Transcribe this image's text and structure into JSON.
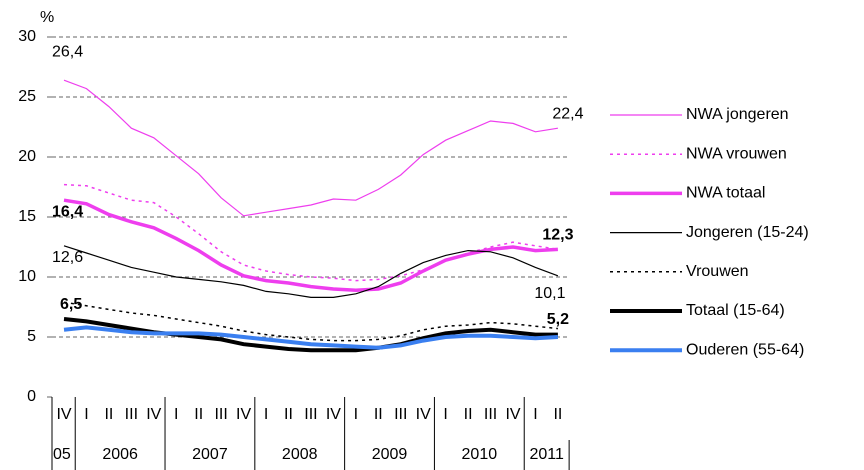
{
  "chart_data": {
    "type": "line",
    "y_label": "%",
    "categories": [
      "IV",
      "I",
      "II",
      "III",
      "IV",
      "I",
      "II",
      "III",
      "IV",
      "I",
      "II",
      "III",
      "IV",
      "I",
      "II",
      "III",
      "IV",
      "I",
      "II",
      "III",
      "IV",
      "I",
      "II"
    ],
    "years": [
      "05",
      "2006",
      "2007",
      "2008",
      "2009",
      "2010",
      "2011"
    ],
    "ylim": [
      0,
      30
    ],
    "yticks": [
      0,
      5,
      10,
      15,
      20,
      25,
      30
    ],
    "grid": true,
    "legend": "right",
    "series": [
      {
        "name": "NWA jongeren",
        "color": "#ee3eee",
        "width": 1.2,
        "style": "solid",
        "values": [
          26.4,
          25.7,
          24.2,
          22.4,
          21.6,
          20.1,
          18.6,
          16.6,
          15.1,
          15.4,
          15.7,
          16.0,
          16.5,
          16.4,
          17.3,
          18.5,
          20.2,
          21.4,
          22.2,
          23.0,
          22.8,
          22.1,
          22.4
        ],
        "value_labels": [
          "26,4",
          null,
          null,
          null,
          null,
          null,
          null,
          null,
          null,
          null,
          null,
          null,
          null,
          null,
          null,
          null,
          null,
          null,
          null,
          null,
          null,
          null,
          "22,4"
        ]
      },
      {
        "name": "NWA vrouwen",
        "color": "#ee3eee",
        "width": 1.5,
        "style": "dotted",
        "values": [
          17.7,
          17.6,
          17.0,
          16.4,
          16.2,
          15.0,
          13.6,
          12.1,
          11.0,
          10.5,
          10.2,
          10.0,
          9.9,
          9.7,
          9.8,
          10.1,
          10.6,
          11.4,
          12.0,
          12.5,
          12.9,
          12.6,
          12.3
        ]
      },
      {
        "name": "NWA totaal",
        "color": "#ee3eee",
        "width": 3.5,
        "style": "solid",
        "values": [
          16.4,
          16.1,
          15.2,
          14.6,
          14.1,
          13.2,
          12.2,
          11.0,
          10.1,
          9.7,
          9.5,
          9.2,
          9.0,
          8.9,
          9.0,
          9.5,
          10.5,
          11.4,
          11.9,
          12.3,
          12.5,
          12.2,
          12.3
        ],
        "value_labels": [
          "16,4",
          null,
          null,
          null,
          null,
          null,
          null,
          null,
          null,
          null,
          null,
          null,
          null,
          null,
          null,
          null,
          null,
          null,
          null,
          null,
          null,
          null,
          "12,3"
        ]
      },
      {
        "name": "Jongeren (15-24)",
        "color": "#000000",
        "width": 1.2,
        "style": "solid",
        "values": [
          12.6,
          12.0,
          11.4,
          10.8,
          10.4,
          10.0,
          9.8,
          9.6,
          9.3,
          8.8,
          8.6,
          8.3,
          8.3,
          8.6,
          9.2,
          10.3,
          11.2,
          11.8,
          12.2,
          12.1,
          11.6,
          10.8,
          10.1
        ],
        "value_labels": [
          "12,6",
          null,
          null,
          null,
          null,
          null,
          null,
          null,
          null,
          null,
          null,
          null,
          null,
          null,
          null,
          null,
          null,
          null,
          null,
          null,
          null,
          null,
          "10,1"
        ]
      },
      {
        "name": "Vrouwen",
        "color": "#000000",
        "width": 1.5,
        "style": "dotted",
        "values": [
          7.9,
          7.6,
          7.3,
          7.0,
          6.8,
          6.5,
          6.2,
          5.9,
          5.5,
          5.2,
          5.0,
          4.8,
          4.7,
          4.7,
          4.8,
          5.1,
          5.6,
          5.9,
          6.0,
          6.2,
          6.1,
          5.9,
          5.7
        ]
      },
      {
        "name": "Totaal (15-64)",
        "color": "#000000",
        "width": 4,
        "style": "solid",
        "values": [
          6.5,
          6.3,
          6.0,
          5.7,
          5.4,
          5.2,
          5.0,
          4.8,
          4.4,
          4.2,
          4.0,
          3.9,
          3.9,
          3.9,
          4.1,
          4.4,
          4.9,
          5.3,
          5.5,
          5.6,
          5.4,
          5.2,
          5.2
        ],
        "value_labels": [
          "6,5",
          null,
          null,
          null,
          null,
          null,
          null,
          null,
          null,
          null,
          null,
          null,
          null,
          null,
          null,
          null,
          null,
          null,
          null,
          null,
          null,
          null,
          "5,2"
        ]
      },
      {
        "name": "Ouderen (55-64)",
        "color": "#3a7ff0",
        "width": 4,
        "style": "solid",
        "values": [
          5.6,
          5.8,
          5.6,
          5.4,
          5.3,
          5.3,
          5.3,
          5.2,
          5.0,
          4.8,
          4.6,
          4.4,
          4.3,
          4.2,
          4.1,
          4.3,
          4.7,
          5.0,
          5.1,
          5.1,
          5.0,
          4.9,
          5.0
        ]
      }
    ]
  }
}
